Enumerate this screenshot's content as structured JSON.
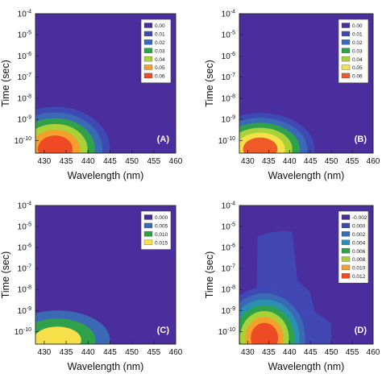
{
  "chart_data": [
    {
      "type": "heatmap",
      "panel_label": "(A)",
      "xlabel": "Wavelength (nm)",
      "ylabel": "Time (sec)",
      "xlim": [
        428,
        460
      ],
      "ylim_log10": [
        -10.6,
        -4
      ],
      "x_ticks": [
        430,
        435,
        440,
        445,
        450,
        455,
        460
      ],
      "y_ticks": [
        {
          "base": "10",
          "exp": "-4"
        },
        {
          "base": "10",
          "exp": "-5"
        },
        {
          "base": "10",
          "exp": "-6"
        },
        {
          "base": "10",
          "exp": "-7"
        },
        {
          "base": "10",
          "exp": "-8"
        },
        {
          "base": "10",
          "exp": "-9"
        },
        {
          "base": "10",
          "exp": "-10"
        }
      ],
      "y_tick_values": [
        -4,
        -5,
        -6,
        -7,
        -8,
        -9,
        -10
      ],
      "legend": {
        "levels": [
          "0.00",
          "0.01",
          "0.02",
          "0.03",
          "0.04",
          "0.05",
          "0.06"
        ],
        "colors": [
          "#4a2e9e",
          "#3f49b3",
          "#3a69b5",
          "#2ea14a",
          "#a9d238",
          "#f5a02c",
          "#ee4a24"
        ]
      },
      "feature": {
        "peak_wavelength_nm": 432.5,
        "peak_log10_time": -10.4,
        "extent_wavelength_nm": [
          428,
          445
        ],
        "extent_log10_time_top": -8.4
      }
    },
    {
      "type": "heatmap",
      "panel_label": "(B)",
      "xlabel": "Wavelength (nm)",
      "ylabel": "Time (sec)",
      "xlim": [
        428,
        460
      ],
      "ylim_log10": [
        -10.6,
        -4
      ],
      "x_ticks": [
        430,
        435,
        440,
        445,
        450,
        455,
        460
      ],
      "y_ticks": [
        {
          "base": "10",
          "exp": "-4"
        },
        {
          "base": "10",
          "exp": "-5"
        },
        {
          "base": "10",
          "exp": "-6"
        },
        {
          "base": "10",
          "exp": "-7"
        },
        {
          "base": "10",
          "exp": "-8"
        },
        {
          "base": "10",
          "exp": "-9"
        },
        {
          "base": "10",
          "exp": "-10"
        }
      ],
      "y_tick_values": [
        -4,
        -5,
        -6,
        -7,
        -8,
        -9,
        -10
      ],
      "legend": {
        "levels": [
          "0.00",
          "0.01",
          "0.02",
          "0.03",
          "0.04",
          "0.05",
          "0.06"
        ],
        "colors": [
          "#4a2e9e",
          "#3f49b3",
          "#3a69b5",
          "#2ea14a",
          "#a9d238",
          "#f5e04a",
          "#ee5a28"
        ]
      },
      "feature": {
        "peak_wavelength_nm": 433,
        "peak_log10_time": -10.4,
        "extent_wavelength_nm": [
          428,
          446
        ],
        "extent_log10_time_top": -8.7
      }
    },
    {
      "type": "heatmap",
      "panel_label": "(C)",
      "xlabel": "Wavelength (nm)",
      "ylabel": "Time (sec)",
      "xlim": [
        428,
        460
      ],
      "ylim_log10": [
        -10.6,
        -4
      ],
      "x_ticks": [
        430,
        435,
        440,
        445,
        450,
        455,
        460
      ],
      "y_ticks": [
        {
          "base": "10",
          "exp": "-4"
        },
        {
          "base": "10",
          "exp": "-5"
        },
        {
          "base": "10",
          "exp": "-6"
        },
        {
          "base": "10",
          "exp": "-7"
        },
        {
          "base": "10",
          "exp": "-8"
        },
        {
          "base": "10",
          "exp": "-9"
        },
        {
          "base": "10",
          "exp": "-10"
        }
      ],
      "y_tick_values": [
        -4,
        -5,
        -6,
        -7,
        -8,
        -9,
        -10
      ],
      "legend": {
        "levels": [
          "0.000",
          "0.005",
          "0.010",
          "0.015"
        ],
        "colors": [
          "#4a2e9e",
          "#3a69b5",
          "#2ea14a",
          "#f5e04a"
        ]
      },
      "feature": {
        "peak_wavelength_nm": 433,
        "peak_log10_time": -10.4,
        "extent_wavelength_nm": [
          428,
          445
        ],
        "extent_log10_time_top": -9.0
      }
    },
    {
      "type": "heatmap",
      "panel_label": "(D)",
      "xlabel": "Wavelength (nm)",
      "ylabel": "Time (sec)",
      "xlim": [
        428,
        460
      ],
      "ylim_log10": [
        -10.6,
        -4
      ],
      "x_ticks": [
        430,
        435,
        440,
        445,
        450,
        455,
        460
      ],
      "y_ticks": [
        {
          "base": "10",
          "exp": "-4"
        },
        {
          "base": "10",
          "exp": "-5"
        },
        {
          "base": "10",
          "exp": "-6"
        },
        {
          "base": "10",
          "exp": "-7"
        },
        {
          "base": "10",
          "exp": "-8"
        },
        {
          "base": "10",
          "exp": "-9"
        },
        {
          "base": "10",
          "exp": "-10"
        }
      ],
      "y_tick_values": [
        -4,
        -5,
        -6,
        -7,
        -8,
        -9,
        -10
      ],
      "legend": {
        "levels": [
          "-0.002",
          "0.000",
          "0.002",
          "0.004",
          "0.006",
          "0.008",
          "0.010",
          "0.012"
        ],
        "colors": [
          "#4a2e9e",
          "#3f49b3",
          "#3a69b5",
          "#2a8fb0",
          "#2ea14a",
          "#a9d238",
          "#f5a02c",
          "#ee4a24"
        ]
      },
      "feature": {
        "peak_wavelength_nm": 434,
        "peak_log10_time": -10.3,
        "extent_wavelength_nm": [
          428,
          445
        ],
        "extent_log10_time_top": -7.9,
        "faint_region_wavelength_nm": [
          432,
          450
        ],
        "faint_region_log10_time_top": -5.1
      }
    }
  ]
}
